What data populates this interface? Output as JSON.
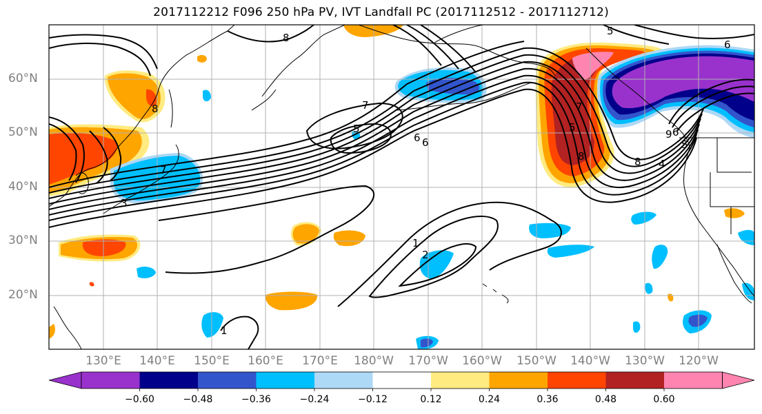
{
  "title": "2017112212 F096 250 hPa PV, IVT Landfall PC (2017112512 - 2017112712)",
  "lat_labels": [
    "60°N",
    "50°N",
    "40°N",
    "30°N",
    "20°N"
  ],
  "lon_labels": [
    "130°E",
    "140°E",
    "150°E",
    "160°E",
    "170°E",
    "180°W",
    "170°W",
    "160°W",
    "150°W",
    "140°W",
    "130°W",
    "120°W"
  ],
  "colorbar": {
    "colors": [
      "#9932cc",
      "#00008b",
      "#3355cc",
      "#00bfff",
      "#add8f6",
      "#ffffff",
      "#ffeb80",
      "#ffa500",
      "#ff4500",
      "#b22222",
      "#ff85b0"
    ],
    "tick_labels": [
      "−0.60",
      "−0.48",
      "−0.36",
      "−0.24",
      "−0.12",
      "0.12",
      "0.24",
      "0.36",
      "0.48",
      "0.60"
    ]
  },
  "contour_labels": [
    "8",
    "7",
    "6",
    "5",
    "6",
    "5",
    "8",
    "7",
    "8",
    "9",
    "6",
    "5",
    "3",
    "1",
    "2",
    "1",
    "8",
    "7",
    "4",
    "5",
    "6"
  ],
  "colors": {
    "grid": "#b0b0b0",
    "axis_label": "#7f7f7f",
    "contour": "#000000"
  }
}
